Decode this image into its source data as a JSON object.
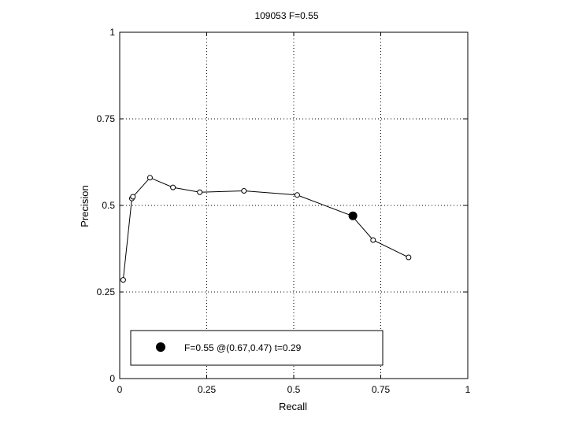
{
  "chart_data": {
    "type": "line",
    "title": "109053 F=0.55",
    "xlabel": "Recall",
    "ylabel": "Precision",
    "xlim": [
      0,
      1
    ],
    "ylim": [
      0,
      1
    ],
    "xticks": [
      0,
      0.25,
      0.5,
      0.75,
      1
    ],
    "yticks": [
      0,
      0.25,
      0.5,
      0.75,
      1
    ],
    "xtick_labels": [
      "0",
      "0.25",
      "0.5",
      "0.75",
      "1"
    ],
    "ytick_labels": [
      "0",
      "0.25",
      "0.5",
      "0.75",
      "1"
    ],
    "grid": true,
    "series": [
      {
        "x": [
          0.01,
          0.035,
          0.038,
          0.087,
          0.153,
          0.23,
          0.357,
          0.51,
          0.667,
          0.728,
          0.83
        ],
        "y": [
          0.285,
          0.52,
          0.525,
          0.58,
          0.552,
          0.538,
          0.542,
          0.53,
          0.47,
          0.4,
          0.35
        ],
        "marker": "open-circle",
        "color": "#000000"
      }
    ],
    "highlight": {
      "x": 0.67,
      "y": 0.47,
      "marker": "filled-circle",
      "color": "#000000"
    },
    "legend": {
      "placement": "bottom-left",
      "entries": [
        "F=0.55 @(0.67,0.47) t=0.29"
      ]
    }
  }
}
